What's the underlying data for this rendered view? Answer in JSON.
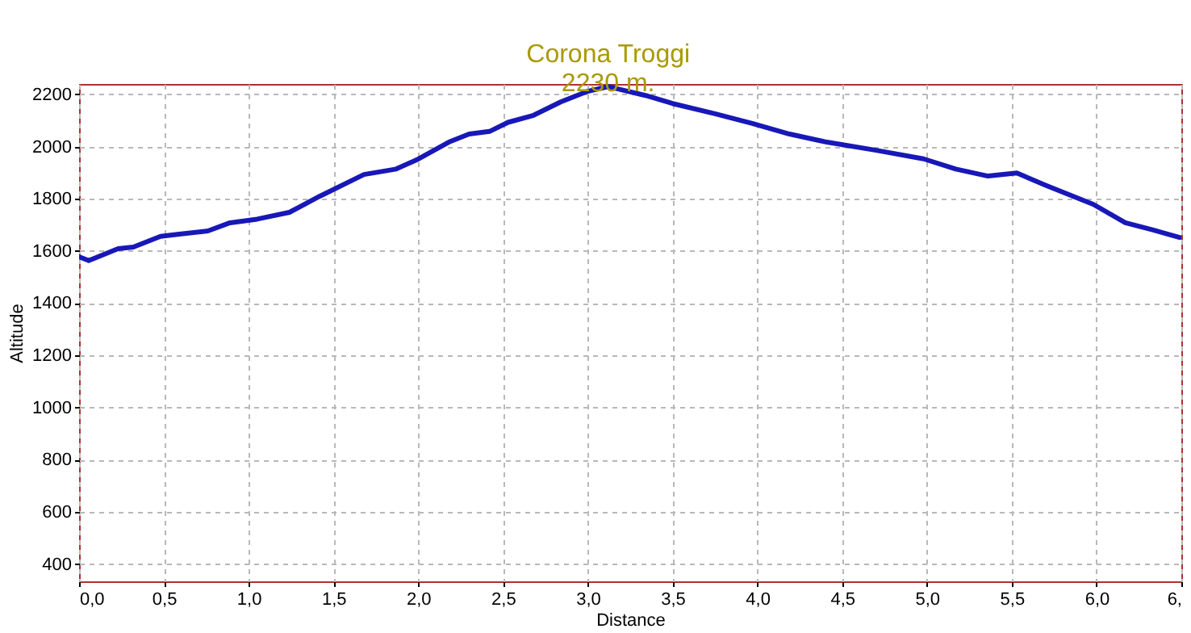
{
  "chart_data": {
    "type": "line",
    "xlabel": "Distance",
    "ylabel": "Altitude",
    "annotations": [
      {
        "text": "Corona Troggi\n2230 m.",
        "x": 3.12,
        "y": 2230
      }
    ],
    "xlim": [
      0,
      6.5
    ],
    "ylim": [
      334,
      2240
    ],
    "xticks": [
      {
        "value": 0,
        "label": "0,0"
      },
      {
        "value": 0.5,
        "label": "0,5"
      },
      {
        "value": 1,
        "label": "1,0"
      },
      {
        "value": 1.5,
        "label": "1,5"
      },
      {
        "value": 2,
        "label": "2,0"
      },
      {
        "value": 2.5,
        "label": "2,5"
      },
      {
        "value": 3,
        "label": "3,0"
      },
      {
        "value": 3.5,
        "label": "3,5"
      },
      {
        "value": 4,
        "label": "4,0"
      },
      {
        "value": 4.5,
        "label": "4,5"
      },
      {
        "value": 5,
        "label": "5,0"
      },
      {
        "value": 5.5,
        "label": "5,5"
      },
      {
        "value": 6,
        "label": "6,0"
      },
      {
        "value": 6.5,
        "label": "6,"
      }
    ],
    "yticks": [
      400,
      600,
      800,
      1000,
      1200,
      1400,
      1600,
      1800,
      2000,
      2200
    ],
    "grid": true,
    "x": [
      0,
      0.057,
      0.23,
      0.32,
      0.48,
      0.58,
      0.76,
      0.89,
      1.05,
      1.24,
      1.42,
      1.68,
      1.87,
      1.99,
      2.18,
      2.3,
      2.42,
      2.53,
      2.68,
      2.84,
      3.0,
      3.12,
      3.34,
      3.5,
      3.75,
      3.97,
      4.19,
      4.41,
      4.7,
      4.98,
      5.17,
      5.36,
      5.53,
      5.7,
      5.98,
      6.17,
      6.33,
      6.49
    ],
    "series": [
      {
        "color": "#1818b8",
        "values": [
          1578,
          1563,
          1609,
          1615,
          1656,
          1664,
          1677,
          1708,
          1722,
          1748,
          1810,
          1893,
          1914,
          1949,
          2017,
          2048,
          2058,
          2093,
          2120,
          2171,
          2212,
          2230,
          2196,
          2165,
          2126,
          2089,
          2048,
          2017,
          1986,
          1953,
          1914,
          1887,
          1899,
          1852,
          1779,
          1708,
          1681,
          1652
        ]
      }
    ]
  }
}
